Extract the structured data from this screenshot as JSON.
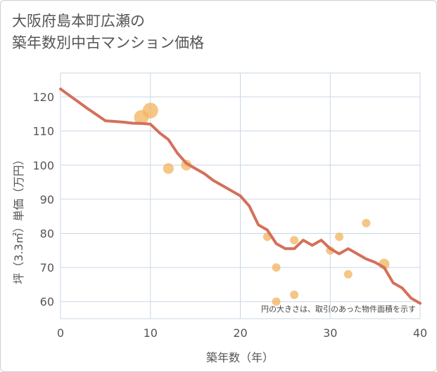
{
  "title": {
    "line1": "大阪府島本町広瀬の",
    "line2": "築年数別中古マンション価格"
  },
  "chart_data": {
    "type": "scatter",
    "xlabel": "築年数（年）",
    "ylabel": "坪（3.3㎡）単価（万円）",
    "xlim": [
      0,
      40
    ],
    "ylim": [
      55,
      127
    ],
    "xticks": [
      0,
      10,
      20,
      30,
      40
    ],
    "yticks": [
      60,
      70,
      80,
      90,
      100,
      110,
      120
    ],
    "grid": true,
    "annotation": "円の大きさは、取引のあった物件面積を示す",
    "colors": {
      "bubble": "#f2b35e",
      "line": "#d4705a",
      "grid": "#c9d7e6"
    },
    "scatter": [
      {
        "x": 9,
        "y": 114,
        "size": 3
      },
      {
        "x": 10,
        "y": 116,
        "size": 3.4
      },
      {
        "x": 12,
        "y": 99,
        "size": 1.6
      },
      {
        "x": 14,
        "y": 100,
        "size": 1.6
      },
      {
        "x": 23,
        "y": 79,
        "size": 1
      },
      {
        "x": 24,
        "y": 70,
        "size": 1
      },
      {
        "x": 24,
        "y": 60,
        "size": 1
      },
      {
        "x": 26,
        "y": 78,
        "size": 1
      },
      {
        "x": 26,
        "y": 62,
        "size": 1
      },
      {
        "x": 30,
        "y": 75,
        "size": 1
      },
      {
        "x": 31,
        "y": 79,
        "size": 1
      },
      {
        "x": 32,
        "y": 68,
        "size": 1
      },
      {
        "x": 34,
        "y": 83,
        "size": 1
      },
      {
        "x": 36,
        "y": 71,
        "size": 1.6
      }
    ],
    "trend": {
      "x": [
        0,
        1,
        2,
        3,
        4,
        5,
        6,
        7,
        8,
        9,
        10,
        11,
        12,
        13,
        14,
        15,
        16,
        17,
        18,
        19,
        20,
        21,
        22,
        23,
        24,
        25,
        26,
        27,
        28,
        29,
        30,
        31,
        32,
        33,
        34,
        35,
        36,
        37,
        38,
        39,
        40
      ],
      "y": [
        122.3,
        120.4,
        118.5,
        116.6,
        114.8,
        113.0,
        112.8,
        112.6,
        112.3,
        112.2,
        112.0,
        109.5,
        107.5,
        103.5,
        100.5,
        99.0,
        97.5,
        95.5,
        94.0,
        92.5,
        91.0,
        88.0,
        82.5,
        81.0,
        77.0,
        75.5,
        75.5,
        78.0,
        76.5,
        78.0,
        75.5,
        74.0,
        75.5,
        74.0,
        72.5,
        71.5,
        70.0,
        65.5,
        64.0,
        61.0,
        59.5
      ]
    }
  }
}
